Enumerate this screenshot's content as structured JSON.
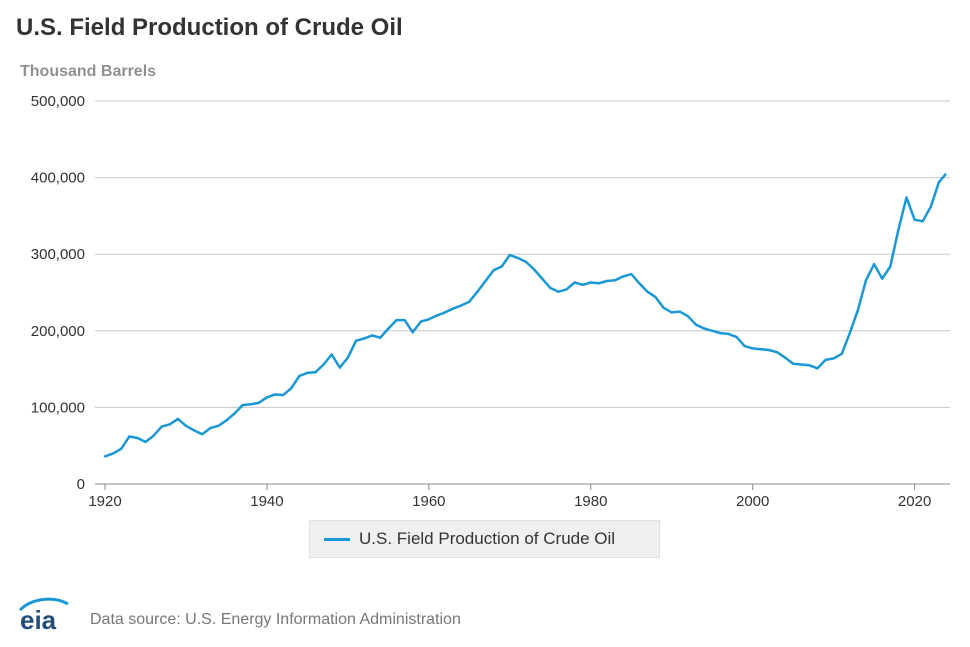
{
  "header": {
    "title": "U.S. Field Production of Crude Oil",
    "unit_label": "Thousand Barrels"
  },
  "footer": {
    "logo_text": "eia",
    "source": "Data source: U.S. Energy Information Administration"
  },
  "colors": {
    "series": "#1a97d5",
    "grid": "#c8c8c8",
    "axis": "#888888"
  },
  "chart_data": {
    "type": "line",
    "title": "U.S. Field Production of Crude Oil",
    "ylabel": "Thousand Barrels",
    "xlim": [
      1920,
      2024
    ],
    "ylim": [
      0,
      500000
    ],
    "x_ticks": [
      1920,
      1940,
      1960,
      1980,
      2000,
      2020
    ],
    "x_tick_labels": [
      "1920",
      "1940",
      "1960",
      "1980",
      "2000",
      "2020"
    ],
    "y_ticks": [
      0,
      100000,
      200000,
      300000,
      400000,
      500000
    ],
    "y_tick_labels": [
      "0",
      "100,000",
      "200,000",
      "300,000",
      "400,000",
      "500,000"
    ],
    "grid": true,
    "legend_position": "bottom-center",
    "series": [
      {
        "name": "U.S. Field Production of Crude Oil",
        "x": [
          1920,
          1921,
          1922,
          1923,
          1924,
          1925,
          1926,
          1927,
          1928,
          1929,
          1930,
          1931,
          1932,
          1933,
          1934,
          1935,
          1936,
          1937,
          1938,
          1939,
          1940,
          1941,
          1942,
          1943,
          1944,
          1945,
          1946,
          1947,
          1948,
          1949,
          1950,
          1951,
          1952,
          1953,
          1954,
          1955,
          1956,
          1957,
          1958,
          1959,
          1960,
          1961,
          1962,
          1963,
          1964,
          1965,
          1966,
          1967,
          1968,
          1969,
          1970,
          1971,
          1972,
          1973,
          1974,
          1975,
          1976,
          1977,
          1978,
          1979,
          1980,
          1981,
          1982,
          1983,
          1984,
          1985,
          1986,
          1987,
          1988,
          1989,
          1990,
          1991,
          1992,
          1993,
          1994,
          1995,
          1996,
          1997,
          1998,
          1999,
          2000,
          2001,
          2002,
          2003,
          2004,
          2005,
          2006,
          2007,
          2008,
          2009,
          2010,
          2011,
          2012,
          2013,
          2014,
          2015,
          2016,
          2017,
          2018,
          2019,
          2020,
          2021,
          2022,
          2023,
          2023.8
        ],
        "values": [
          36000,
          40000,
          46000,
          62000,
          60000,
          55000,
          63000,
          75000,
          78000,
          85000,
          76000,
          70000,
          65000,
          73000,
          76000,
          83000,
          92000,
          103000,
          104000,
          106000,
          113000,
          117000,
          116000,
          125000,
          141000,
          145000,
          146000,
          156000,
          169000,
          152000,
          165000,
          187000,
          190000,
          194000,
          191000,
          203000,
          214000,
          214000,
          198000,
          212000,
          215000,
          220000,
          224000,
          229000,
          233000,
          238000,
          251000,
          265000,
          279000,
          284000,
          299000,
          295000,
          290000,
          280000,
          268000,
          256000,
          251000,
          254000,
          263000,
          260000,
          263000,
          262000,
          265000,
          266000,
          271000,
          274000,
          262000,
          251000,
          244000,
          230000,
          224000,
          225000,
          219000,
          208000,
          203000,
          200000,
          197000,
          196000,
          192000,
          180000,
          177000,
          176000,
          175000,
          172000,
          165000,
          157000,
          156000,
          155000,
          151000,
          162000,
          164000,
          170000,
          197000,
          227000,
          266000,
          287000,
          268000,
          284000,
          332000,
          374000,
          345000,
          343000,
          362000,
          394000,
          404000
        ]
      }
    ]
  }
}
